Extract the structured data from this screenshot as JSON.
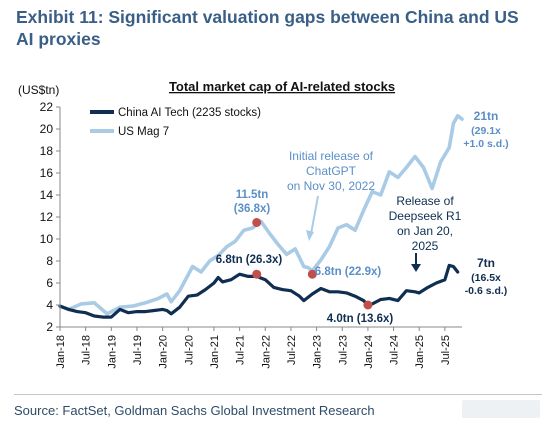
{
  "exhibit_title": "Exhibit 11: Significant valuation gaps between China and US AI proxies",
  "source": "Source: FactSet, Goldman Sachs Global Investment Research",
  "colors": {
    "china": "#0f2e52",
    "us": "#a9cbe6",
    "title": "#3a5f86",
    "annotation_blue": "#5b8fc7",
    "marker_red": "#c0504d"
  },
  "chart_data": {
    "type": "line",
    "title": "Total market cap of AI-related stocks",
    "ylabel": "(US$tn)",
    "ylim": [
      2,
      22
    ],
    "yticks": [
      2,
      4,
      6,
      8,
      10,
      12,
      14,
      16,
      18,
      20,
      22
    ],
    "xlim": [
      "2018-01",
      "2025-11"
    ],
    "xtick_labels": [
      "Jan-18",
      "Jul-18",
      "Jan-19",
      "Jul-19",
      "Jan-20",
      "Jul-20",
      "Jan-21",
      "Jul-21",
      "Jan-22",
      "Jul-22",
      "Jan-23",
      "Jul-23",
      "Jan-24",
      "Jul-24",
      "Jan-25",
      "Jul-25"
    ],
    "xtick_dates": [
      "2018-01",
      "2018-07",
      "2019-01",
      "2019-07",
      "2020-01",
      "2020-07",
      "2021-01",
      "2021-07",
      "2022-01",
      "2022-07",
      "2023-01",
      "2023-07",
      "2024-01",
      "2024-07",
      "2025-01",
      "2025-07"
    ],
    "legend_position": "top-left",
    "series": [
      {
        "name": "China AI Tech (2235 stocks)",
        "x": [
          "2018-01",
          "2018-03",
          "2018-05",
          "2018-07",
          "2018-09",
          "2018-11",
          "2019-01",
          "2019-03",
          "2019-05",
          "2019-07",
          "2019-09",
          "2019-11",
          "2020-01",
          "2020-02",
          "2020-03",
          "2020-05",
          "2020-07",
          "2020-09",
          "2020-11",
          "2021-01",
          "2021-02",
          "2021-03",
          "2021-05",
          "2021-07",
          "2021-09",
          "2021-11",
          "2022-01",
          "2022-03",
          "2022-05",
          "2022-07",
          "2022-09",
          "2022-10",
          "2022-12",
          "2023-02",
          "2023-04",
          "2023-06",
          "2023-08",
          "2023-10",
          "2023-12",
          "2024-01",
          "2024-02",
          "2024-04",
          "2024-06",
          "2024-08",
          "2024-10",
          "2024-12",
          "2025-01",
          "2025-03",
          "2025-05",
          "2025-07",
          "2025-08",
          "2025-09",
          "2025-10"
        ],
        "y": [
          3.9,
          3.6,
          3.4,
          3.3,
          3.0,
          2.9,
          2.9,
          3.6,
          3.3,
          3.4,
          3.4,
          3.5,
          3.6,
          3.5,
          3.2,
          3.8,
          4.8,
          4.9,
          5.4,
          6.0,
          6.5,
          6.1,
          6.3,
          6.8,
          6.6,
          6.6,
          6.3,
          5.6,
          5.4,
          5.3,
          4.8,
          4.4,
          5.0,
          5.5,
          5.2,
          5.2,
          5.1,
          4.8,
          4.4,
          4.0,
          4.1,
          4.5,
          4.6,
          4.4,
          5.3,
          5.2,
          5.1,
          5.6,
          6.0,
          6.3,
          7.6,
          7.5,
          7.0
        ]
      },
      {
        "name": "US Mag 7",
        "x": [
          "2018-01",
          "2018-03",
          "2018-06",
          "2018-09",
          "2018-12",
          "2019-03",
          "2019-06",
          "2019-09",
          "2019-12",
          "2020-02",
          "2020-03",
          "2020-05",
          "2020-08",
          "2020-10",
          "2020-12",
          "2021-02",
          "2021-04",
          "2021-06",
          "2021-08",
          "2021-10",
          "2021-12",
          "2022-02",
          "2022-04",
          "2022-06",
          "2022-08",
          "2022-10",
          "2022-11",
          "2022-12",
          "2023-02",
          "2023-04",
          "2023-06",
          "2023-08",
          "2023-10",
          "2023-12",
          "2024-02",
          "2024-04",
          "2024-06",
          "2024-08",
          "2024-10",
          "2024-12",
          "2025-02",
          "2025-04",
          "2025-06",
          "2025-08",
          "2025-09",
          "2025-10",
          "2025-11"
        ],
        "y": [
          3.9,
          3.6,
          4.1,
          4.2,
          3.2,
          3.8,
          3.9,
          4.2,
          4.6,
          5.0,
          4.3,
          5.3,
          7.5,
          7.0,
          8.0,
          8.5,
          9.3,
          9.8,
          10.8,
          11.0,
          11.6,
          10.5,
          9.5,
          8.6,
          9.1,
          7.5,
          7.4,
          7.1,
          8.1,
          9.3,
          11.0,
          11.3,
          10.8,
          12.6,
          14.3,
          14.0,
          16.1,
          15.6,
          16.5,
          17.5,
          16.5,
          14.6,
          17.0,
          18.3,
          20.5,
          21.2,
          20.9
        ]
      }
    ],
    "markers": [
      {
        "label": "11.5tn",
        "sub": "(36.8x)",
        "x": "2021-11",
        "y": 11.5
      },
      {
        "label": "6.8tn (26.3x)",
        "x": "2021-11",
        "y": 6.8
      },
      {
        "label": "6.8tn (22.9x)",
        "x": "2022-12",
        "y": 6.8
      },
      {
        "label": "4.0tn (13.6x)",
        "x": "2024-01",
        "y": 4.0
      }
    ],
    "annotations": {
      "chatgpt": [
        "Initial release of",
        "ChatGPT",
        "on Nov 30, 2022"
      ],
      "deepseek": [
        "Release of",
        "Deepseek R1",
        "on Jan 20,",
        "2025"
      ],
      "us_end": [
        "21tn",
        "(29.1x",
        "+1.0 s.d.)"
      ],
      "china_end": [
        "7tn",
        "(16.5x",
        "-0.6 s.d.)"
      ]
    }
  }
}
